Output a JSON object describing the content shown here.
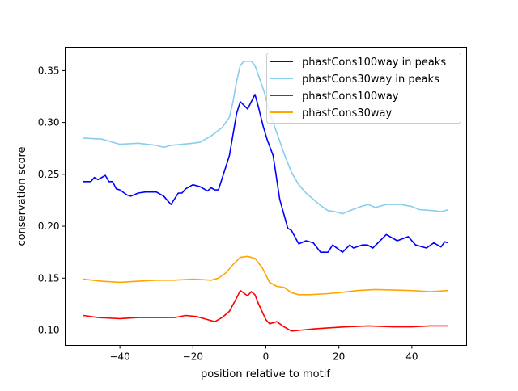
{
  "chart_data": {
    "type": "line",
    "title": "",
    "xlabel": "position relative to motif",
    "ylabel": "conservation score",
    "xlim": [
      -55,
      55
    ],
    "ylim": [
      0.0852,
      0.3725
    ],
    "xticks": [
      -40,
      -20,
      0,
      20,
      40
    ],
    "xtick_labels": [
      "−40",
      "−20",
      "0",
      "20",
      "40"
    ],
    "yticks": [
      0.1,
      0.15,
      0.2,
      0.25,
      0.3,
      0.35
    ],
    "ytick_labels": [
      "0.10",
      "0.15",
      "0.20",
      "0.25",
      "0.30",
      "0.35"
    ],
    "grid": false,
    "legend_position": "top-right",
    "series": [
      {
        "name": "phastCons100way in peaks",
        "color": "#0000ff",
        "x": [
          -50,
          -48,
          -47,
          -46,
          -44,
          -43,
          -42,
          -41,
          -40,
          -38,
          -37,
          -35,
          -33,
          -30,
          -28,
          -26,
          -24,
          -23,
          -22,
          -20,
          -18,
          -16,
          -15,
          -14,
          -13,
          -12,
          -10,
          -8,
          -7,
          -5,
          -3,
          -2.2,
          -0.7,
          0.4,
          2,
          3.8,
          6,
          7,
          9,
          11,
          13,
          15,
          17,
          18.3,
          21,
          23,
          24,
          26.4,
          27.8,
          29.3,
          33,
          36,
          39,
          41,
          44,
          46,
          48,
          49,
          50
        ],
        "y": [
          0.243,
          0.243,
          0.247,
          0.245,
          0.249,
          0.243,
          0.243,
          0.236,
          0.235,
          0.23,
          0.229,
          0.232,
          0.233,
          0.233,
          0.229,
          0.221,
          0.232,
          0.232,
          0.236,
          0.24,
          0.238,
          0.234,
          0.237,
          0.235,
          0.235,
          0.246,
          0.268,
          0.309,
          0.32,
          0.313,
          0.327,
          0.317,
          0.296,
          0.283,
          0.268,
          0.226,
          0.198,
          0.196,
          0.183,
          0.186,
          0.184,
          0.175,
          0.175,
          0.182,
          0.175,
          0.182,
          0.179,
          0.182,
          0.182,
          0.179,
          0.192,
          0.186,
          0.19,
          0.182,
          0.179,
          0.184,
          0.18,
          0.185,
          0.184
        ]
      },
      {
        "name": "phastCons30way in peaks",
        "color": "#87ceeb",
        "x": [
          -50,
          -45,
          -40,
          -35,
          -30,
          -28,
          -26,
          -20,
          -18,
          -15,
          -12,
          -10,
          -9,
          -8,
          -7,
          -6,
          -4,
          -3,
          -2,
          -0.5,
          1,
          3,
          5,
          7,
          9,
          11,
          13,
          15,
          17,
          19,
          21,
          23,
          26,
          28,
          30,
          33,
          37,
          40,
          42,
          46,
          48,
          50
        ],
        "y": [
          0.285,
          0.284,
          0.279,
          0.28,
          0.278,
          0.276,
          0.278,
          0.28,
          0.281,
          0.287,
          0.295,
          0.305,
          0.32,
          0.34,
          0.355,
          0.359,
          0.359,
          0.355,
          0.345,
          0.33,
          0.31,
          0.29,
          0.27,
          0.252,
          0.24,
          0.232,
          0.226,
          0.22,
          0.215,
          0.214,
          0.212,
          0.215,
          0.219,
          0.221,
          0.218,
          0.221,
          0.221,
          0.219,
          0.216,
          0.215,
          0.214,
          0.216
        ]
      },
      {
        "name": "phastCons100way",
        "color": "#ff0000",
        "x": [
          -50,
          -46,
          -40,
          -35,
          -30,
          -25,
          -22,
          -19,
          -16,
          -14,
          -12,
          -10,
          -8,
          -7,
          -5,
          -4,
          -3,
          -2,
          0,
          1,
          3,
          5,
          7,
          10,
          13,
          17,
          22,
          28,
          35,
          40,
          45,
          50
        ],
        "y": [
          0.114,
          0.112,
          0.111,
          0.112,
          0.112,
          0.112,
          0.114,
          0.113,
          0.11,
          0.108,
          0.112,
          0.118,
          0.131,
          0.138,
          0.133,
          0.137,
          0.134,
          0.125,
          0.11,
          0.106,
          0.108,
          0.103,
          0.099,
          0.1,
          0.101,
          0.102,
          0.103,
          0.104,
          0.103,
          0.103,
          0.104,
          0.104
        ]
      },
      {
        "name": "phastCons30way",
        "color": "#ffa500",
        "x": [
          -50,
          -45,
          -40,
          -35,
          -30,
          -25,
          -20,
          -15,
          -13,
          -11,
          -9,
          -7,
          -5,
          -3,
          -1,
          1,
          3,
          5,
          7,
          9,
          12,
          17,
          20,
          25,
          30,
          40,
          45,
          50
        ],
        "y": [
          0.149,
          0.147,
          0.146,
          0.147,
          0.148,
          0.148,
          0.149,
          0.148,
          0.15,
          0.155,
          0.163,
          0.17,
          0.171,
          0.169,
          0.16,
          0.146,
          0.142,
          0.141,
          0.136,
          0.134,
          0.134,
          0.135,
          0.136,
          0.138,
          0.139,
          0.138,
          0.137,
          0.138
        ]
      }
    ]
  }
}
